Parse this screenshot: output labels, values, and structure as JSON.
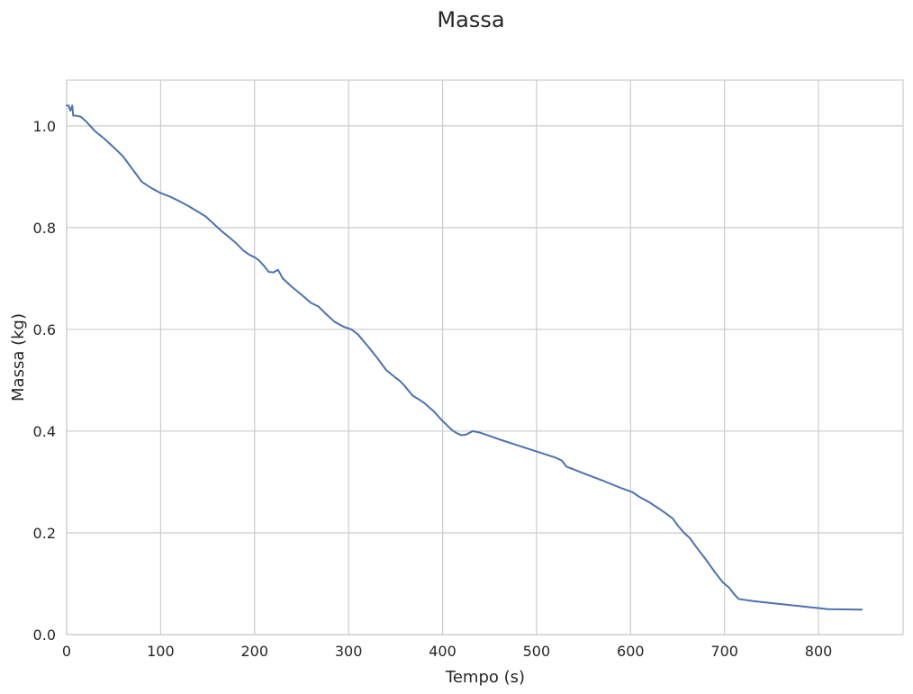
{
  "chart_data": {
    "type": "line",
    "title": "Massa",
    "xlabel": "Tempo (s)",
    "ylabel": "Massa (kg)",
    "xlim": [
      0,
      890
    ],
    "ylim": [
      0,
      1.09
    ],
    "grid": true,
    "xticks": [
      0,
      100,
      200,
      300,
      400,
      500,
      600,
      700,
      800
    ],
    "xtick_labels": [
      "0",
      "100",
      "200",
      "300",
      "400",
      "500",
      "600",
      "700",
      "800"
    ],
    "yticks": [
      0.0,
      0.2,
      0.4,
      0.6,
      0.8,
      1.0
    ],
    "ytick_labels": [
      "0.0",
      "0.2",
      "0.4",
      "0.6",
      "0.8",
      "1.0"
    ],
    "series": [
      {
        "color": "#4c72b0",
        "x": [
          0,
          2,
          4,
          6,
          7,
          10,
          15,
          20,
          25,
          30,
          40,
          50,
          60,
          70,
          80,
          90,
          100,
          110,
          120,
          130,
          140,
          148,
          155,
          165,
          175,
          180,
          188,
          195,
          200,
          205,
          210,
          215,
          220,
          225,
          230,
          240,
          250,
          255,
          260,
          268,
          275,
          285,
          295,
          303,
          310,
          320,
          330,
          340,
          348,
          355,
          360,
          368,
          375,
          380,
          390,
          400,
          410,
          415,
          420,
          425,
          432,
          440,
          460,
          480,
          500,
          520,
          527,
          532,
          550,
          570,
          590,
          602,
          610,
          620,
          630,
          640,
          645,
          650,
          657,
          663,
          670,
          680,
          690,
          698,
          705,
          710,
          715,
          730,
          750,
          770,
          790,
          805,
          810,
          846
        ],
        "y": [
          1.04,
          1.04,
          1.03,
          1.04,
          1.02,
          1.02,
          1.018,
          1.01,
          1.0,
          0.99,
          0.975,
          0.958,
          0.94,
          0.915,
          0.89,
          0.878,
          0.868,
          0.861,
          0.852,
          0.842,
          0.831,
          0.822,
          0.81,
          0.793,
          0.778,
          0.77,
          0.755,
          0.746,
          0.742,
          0.735,
          0.725,
          0.713,
          0.712,
          0.717,
          0.7,
          0.683,
          0.668,
          0.66,
          0.652,
          0.645,
          0.632,
          0.615,
          0.605,
          0.6,
          0.59,
          0.568,
          0.545,
          0.52,
          0.508,
          0.498,
          0.488,
          0.47,
          0.462,
          0.456,
          0.44,
          0.42,
          0.402,
          0.396,
          0.392,
          0.393,
          0.4,
          0.397,
          0.384,
          0.372,
          0.36,
          0.348,
          0.342,
          0.33,
          0.317,
          0.303,
          0.288,
          0.28,
          0.27,
          0.26,
          0.248,
          0.235,
          0.228,
          0.215,
          0.2,
          0.19,
          0.172,
          0.148,
          0.122,
          0.103,
          0.092,
          0.08,
          0.07,
          0.066,
          0.062,
          0.058,
          0.054,
          0.051,
          0.05,
          0.049
        ]
      }
    ]
  }
}
